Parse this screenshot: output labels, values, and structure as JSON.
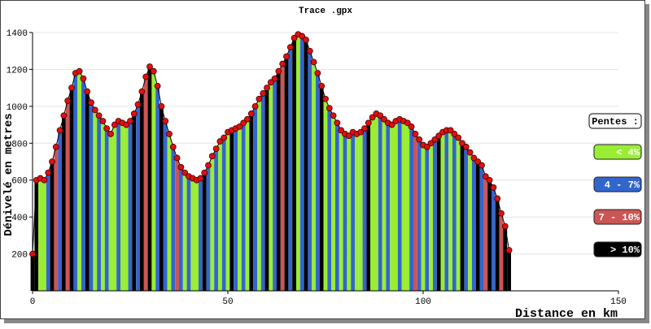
{
  "chart_data": {
    "type": "elevation-profile",
    "title": "Trace .gpx",
    "x_label": "Distance en km",
    "y_label": "Dénivelé en metres",
    "legend_title": "Pentes :",
    "legend": [
      {
        "name": "< 4%",
        "color": "#99ee33"
      },
      {
        "name": "4 - 7%",
        "color": "#3366cc"
      },
      {
        "name": "7 - 10%",
        "color": "#cc5555"
      },
      {
        "name": "> 10%",
        "color": "#000000"
      }
    ],
    "point_color": "#e01010",
    "xlim": [
      0,
      150
    ],
    "xticks": [
      0,
      50,
      100,
      150
    ],
    "ylim": [
      0,
      1400
    ],
    "yticks": [
      200,
      400,
      600,
      800,
      1000,
      1200,
      1400
    ],
    "x": [
      0,
      1,
      2,
      3,
      4,
      5,
      6,
      7,
      8,
      9,
      10,
      11,
      12,
      13,
      14,
      15,
      16,
      17,
      18,
      19,
      20,
      21,
      22,
      23,
      24,
      25,
      26,
      27,
      28,
      29,
      30,
      31,
      32,
      33,
      34,
      35,
      36,
      37,
      38,
      39,
      40,
      41,
      42,
      43,
      44,
      45,
      46,
      47,
      48,
      49,
      50,
      51,
      52,
      53,
      54,
      55,
      56,
      57,
      58,
      59,
      60,
      61,
      62,
      63,
      64,
      65,
      66,
      67,
      68,
      69,
      70,
      71,
      72,
      73,
      74,
      75,
      76,
      77,
      78,
      79,
      80,
      81,
      82,
      83,
      84,
      85,
      86,
      87,
      88,
      89,
      90,
      91,
      92,
      93,
      94,
      95,
      96,
      97,
      98,
      99,
      100,
      101,
      102,
      103,
      104,
      105,
      106,
      107,
      108,
      109,
      110,
      111,
      112,
      113,
      114,
      115,
      116,
      117,
      118,
      119,
      120,
      121,
      122
    ],
    "values": [
      200,
      600,
      610,
      600,
      640,
      700,
      780,
      870,
      950,
      1030,
      1100,
      1180,
      1190,
      1150,
      1080,
      1020,
      980,
      950,
      920,
      880,
      850,
      900,
      920,
      910,
      900,
      920,
      960,
      1010,
      1080,
      1160,
      1215,
      1190,
      1110,
      1000,
      920,
      850,
      780,
      720,
      670,
      640,
      620,
      610,
      600,
      610,
      640,
      680,
      730,
      770,
      810,
      830,
      860,
      870,
      880,
      890,
      910,
      930,
      960,
      1000,
      1040,
      1070,
      1100,
      1130,
      1150,
      1190,
      1230,
      1270,
      1320,
      1370,
      1390,
      1380,
      1360,
      1300,
      1240,
      1180,
      1110,
      1040,
      990,
      950,
      910,
      870,
      850,
      840,
      860,
      850,
      860,
      880,
      910,
      940,
      960,
      950,
      930,
      910,
      900,
      920,
      930,
      920,
      910,
      890,
      850,
      820,
      790,
      780,
      800,
      820,
      840,
      860,
      870,
      870,
      850,
      830,
      800,
      780,
      750,
      720,
      700,
      680,
      620,
      600,
      560,
      500,
      420,
      350,
      220
    ],
    "colors": [
      "#000",
      "#000",
      "#9e3",
      "#9e3",
      "#36c",
      "#000",
      "#c55",
      "#36c",
      "#000",
      "#c55",
      "#000",
      "#36c",
      "#9e3",
      "#36c",
      "#000",
      "#36c",
      "#9e3",
      "#36c",
      "#9e3",
      "#36c",
      "#9e3",
      "#9e3",
      "#36c",
      "#9e3",
      "#9e3",
      "#36c",
      "#000",
      "#36c",
      "#000",
      "#c55",
      "#000",
      "#9e3",
      "#36c",
      "#000",
      "#36c",
      "#9e3",
      "#36c",
      "#c55",
      "#36c",
      "#9e3",
      "#36c",
      "#9e3",
      "#9e3",
      "#36c",
      "#000",
      "#36c",
      "#9e3",
      "#36c",
      "#9e3",
      "#36c",
      "#9e3",
      "#000",
      "#36c",
      "#9e3",
      "#36c",
      "#9e3",
      "#000",
      "#36c",
      "#9e3",
      "#36c",
      "#000",
      "#9e3",
      "#36c",
      "#000",
      "#c55",
      "#000",
      "#36c",
      "#000",
      "#9e3",
      "#36c",
      "#000",
      "#36c",
      "#9e3",
      "#36c",
      "#000",
      "#9e3",
      "#36c",
      "#9e3",
      "#36c",
      "#9e3",
      "#36c",
      "#9e3",
      "#36c",
      "#9e3",
      "#9e3",
      "#36c",
      "#000",
      "#9e3",
      "#9e3",
      "#36c",
      "#9e3",
      "#36c",
      "#9e3",
      "#9e3",
      "#36c",
      "#9e3",
      "#9e3",
      "#36c",
      "#c55",
      "#36c",
      "#9e3",
      "#36c",
      "#9e3",
      "#36c",
      "#000",
      "#9e3",
      "#36c",
      "#9e3",
      "#36c",
      "#9e3",
      "#000",
      "#36c",
      "#9e3",
      "#36c",
      "#000",
      "#36c",
      "#c55",
      "#000",
      "#36c",
      "#000",
      "#c55",
      "#000",
      "#000"
    ]
  }
}
